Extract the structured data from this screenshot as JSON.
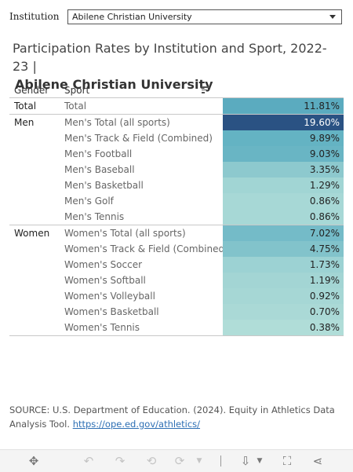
{
  "filter": {
    "label": "Institution",
    "value": "Abilene Christian University"
  },
  "chart_data": {
    "type": "table",
    "title_line1": "Participation Rates by Institution and Sport, 2022-23 |",
    "title_line2": "Abilene Christian University",
    "columns": [
      "Gender",
      "Sport"
    ],
    "value_format": "percent",
    "color_scale": {
      "low": "#bfe5dc",
      "high": "#2a5283"
    },
    "groups": [
      {
        "gender": "Total",
        "rows": [
          {
            "sport": "Total",
            "value": 11.81,
            "display": "11.81%"
          }
        ]
      },
      {
        "gender": "Men",
        "rows": [
          {
            "sport": "Men's Total (all sports)",
            "value": 19.6,
            "display": "19.60%"
          },
          {
            "sport": "Men's Track & Field (Combined)",
            "value": 9.89,
            "display": "9.89%"
          },
          {
            "sport": "Men's Football",
            "value": 9.03,
            "display": "9.03%"
          },
          {
            "sport": "Men's Baseball",
            "value": 3.35,
            "display": "3.35%"
          },
          {
            "sport": "Men's Basketball",
            "value": 1.29,
            "display": "1.29%"
          },
          {
            "sport": "Men's Golf",
            "value": 0.86,
            "display": "0.86%"
          },
          {
            "sport": "Men's Tennis",
            "value": 0.86,
            "display": "0.86%"
          }
        ]
      },
      {
        "gender": "Women",
        "rows": [
          {
            "sport": "Women's Total (all sports)",
            "value": 7.02,
            "display": "7.02%"
          },
          {
            "sport": "Women's Track & Field (Combined)",
            "value": 4.75,
            "display": "4.75%"
          },
          {
            "sport": "Women's Soccer",
            "value": 1.73,
            "display": "1.73%"
          },
          {
            "sport": "Women's Softball",
            "value": 1.19,
            "display": "1.19%"
          },
          {
            "sport": "Women's Volleyball",
            "value": 0.92,
            "display": "0.92%"
          },
          {
            "sport": "Women's Basketball",
            "value": 0.7,
            "display": "0.70%"
          },
          {
            "sport": "Women's Tennis",
            "value": 0.38,
            "display": "0.38%"
          }
        ]
      }
    ]
  },
  "source": {
    "text": "SOURCE: U.S. Department of Education. (2024). Equity in Athletics Data Analysis Tool. ",
    "link": "https://ope.ed.gov/athletics/"
  },
  "toolbar": {
    "icons": [
      "move-icon",
      "undo-icon",
      "redo-icon",
      "revert-icon",
      "refresh-icon",
      "dropdown-icon",
      "download-icon",
      "fullscreen-icon",
      "share-icon"
    ]
  }
}
